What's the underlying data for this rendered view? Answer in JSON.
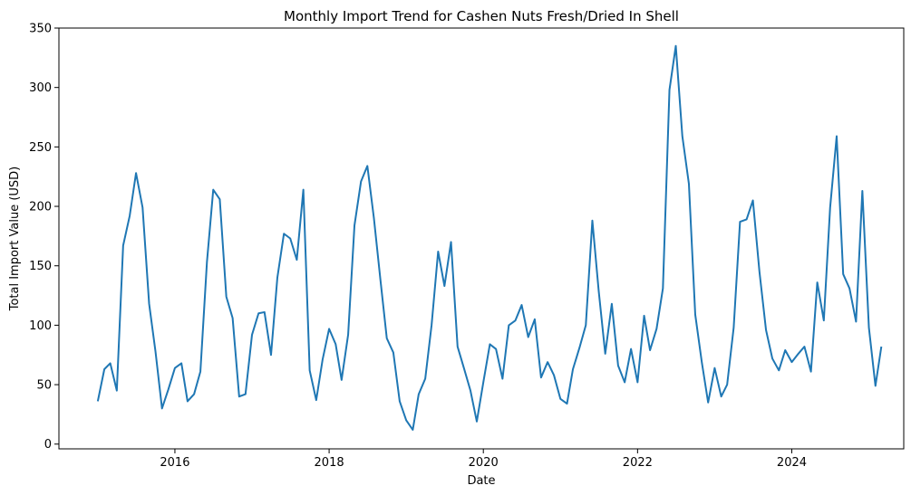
{
  "chart_data": {
    "type": "line",
    "title": "Monthly Import Trend for Cashen Nuts Fresh/Dried In Shell",
    "xlabel": "Date",
    "ylabel": "Total Import Value (USD)",
    "xlim": [
      "2014-07-01",
      "2025-06-15"
    ],
    "ylim": [
      -4,
      350
    ],
    "x_ticks": [
      {
        "label": "2016",
        "date": "2016-01-01"
      },
      {
        "label": "2018",
        "date": "2018-01-01"
      },
      {
        "label": "2020",
        "date": "2020-01-01"
      },
      {
        "label": "2022",
        "date": "2022-01-01"
      },
      {
        "label": "2024",
        "date": "2024-01-01"
      }
    ],
    "y_ticks": [
      0,
      50,
      100,
      150,
      200,
      250,
      300,
      350
    ],
    "grid": false,
    "legend": "none",
    "colors": {
      "line": "#1f77b4"
    },
    "series": [
      {
        "x": [
          "2015-01",
          "2015-02",
          "2015-03",
          "2015-04",
          "2015-05",
          "2015-06",
          "2015-07",
          "2015-08",
          "2015-09",
          "2015-10",
          "2015-11",
          "2015-12",
          "2016-01",
          "2016-02",
          "2016-03",
          "2016-04",
          "2016-05",
          "2016-06",
          "2016-07",
          "2016-08",
          "2016-09",
          "2016-10",
          "2016-11",
          "2016-12",
          "2017-01",
          "2017-02",
          "2017-03",
          "2017-04",
          "2017-05",
          "2017-06",
          "2017-07",
          "2017-08",
          "2017-09",
          "2017-10",
          "2017-11",
          "2017-12",
          "2018-01",
          "2018-02",
          "2018-03",
          "2018-04",
          "2018-05",
          "2018-06",
          "2018-07",
          "2018-08",
          "2018-09",
          "2018-10",
          "2018-11",
          "2018-12",
          "2019-01",
          "2019-02",
          "2019-03",
          "2019-04",
          "2019-05",
          "2019-06",
          "2019-07",
          "2019-08",
          "2019-09",
          "2019-10",
          "2019-11",
          "2019-12",
          "2020-01",
          "2020-02",
          "2020-03",
          "2020-04",
          "2020-05",
          "2020-06",
          "2020-07",
          "2020-08",
          "2020-09",
          "2020-10",
          "2020-11",
          "2020-12",
          "2021-01",
          "2021-02",
          "2021-03",
          "2021-04",
          "2021-05",
          "2021-06",
          "2021-07",
          "2021-08",
          "2021-09",
          "2021-10",
          "2021-11",
          "2021-12",
          "2022-01",
          "2022-02",
          "2022-03",
          "2022-04",
          "2022-05",
          "2022-06",
          "2022-07",
          "2022-08",
          "2022-09",
          "2022-10",
          "2022-11",
          "2022-12",
          "2023-01",
          "2023-02",
          "2023-03",
          "2023-04",
          "2023-05",
          "2023-06",
          "2023-07",
          "2023-08",
          "2023-09",
          "2023-10",
          "2023-11",
          "2023-12",
          "2024-01",
          "2024-02",
          "2024-03",
          "2024-04",
          "2024-05",
          "2024-06",
          "2024-07",
          "2024-08",
          "2024-09",
          "2024-10",
          "2024-11",
          "2024-12",
          "2025-01",
          "2025-02",
          "2025-03"
        ],
        "values": [
          36,
          63,
          68,
          45,
          167,
          192,
          228,
          199,
          118,
          78,
          30,
          46,
          64,
          68,
          36,
          42,
          61,
          153,
          214,
          206,
          124,
          106,
          40,
          42,
          92,
          110,
          111,
          75,
          140,
          177,
          173,
          155,
          214,
          62,
          37,
          71,
          97,
          84,
          54,
          92,
          184,
          221,
          234,
          190,
          138,
          89,
          77,
          36,
          20,
          12,
          42,
          55,
          100,
          162,
          133,
          170,
          82,
          64,
          45,
          19,
          52,
          84,
          80,
          55,
          100,
          104,
          117,
          90,
          105,
          56,
          69,
          58,
          38,
          34,
          63,
          81,
          100,
          188,
          129,
          76,
          118,
          66,
          52,
          80,
          52,
          108,
          79,
          97,
          131,
          298,
          335,
          259,
          219,
          109,
          69,
          35,
          64,
          40,
          50,
          98,
          187,
          189,
          205,
          145,
          96,
          72,
          62,
          79,
          69,
          76,
          82,
          61,
          136,
          104,
          199,
          259,
          143,
          131,
          103,
          213,
          98,
          49,
          82
        ]
      }
    ]
  }
}
